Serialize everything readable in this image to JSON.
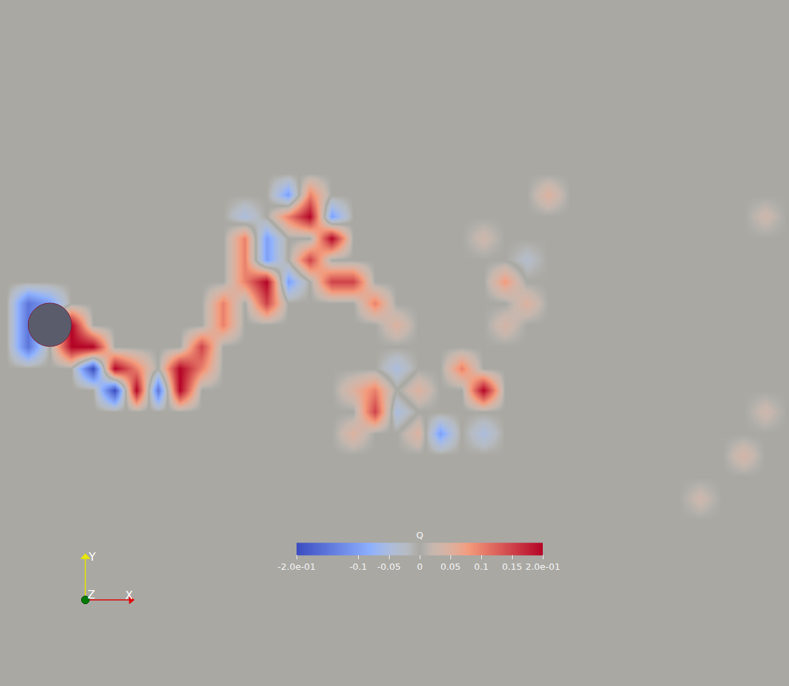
{
  "chart_data": {
    "type": "heatmap",
    "tick_labels": false,
    "xlim": [
      -1.15,
      17.05
    ],
    "ylim": [
      -8.32,
      7.48
    ],
    "x": [
      -1,
      -0.5,
      0,
      0.5,
      1,
      1.5,
      2,
      2.5,
      3,
      3.5,
      4,
      4.5,
      5,
      5.5,
      6,
      6.5,
      7,
      7.5,
      8,
      8.5,
      9,
      9.5,
      10,
      10.5,
      11,
      11.5,
      12,
      12.5,
      13,
      13.5,
      14,
      14.5,
      15,
      15.5,
      16,
      16.5,
      17
    ],
    "y": [
      4,
      3.5,
      3,
      2.5,
      2,
      1.5,
      1,
      0.5,
      0,
      -0.5,
      -1,
      -1.5,
      -2,
      -2.5,
      -3,
      -3.5,
      -4,
      -4.5
    ],
    "z": [
      [
        0,
        0,
        0,
        0,
        0,
        0,
        0,
        0,
        0,
        0,
        0,
        0,
        0,
        0,
        0,
        0,
        0,
        0,
        0,
        0,
        0,
        0,
        0,
        0,
        0,
        0,
        0,
        0,
        0,
        0,
        0,
        0,
        0,
        0,
        0,
        0,
        0
      ],
      [
        0,
        0,
        0,
        0,
        0,
        0,
        0,
        0,
        0,
        0,
        0,
        0,
        0,
        0,
        0,
        0,
        0,
        0,
        0,
        0,
        0,
        0,
        0,
        0,
        0,
        0,
        0,
        0,
        0,
        0,
        0,
        0,
        0,
        0,
        0,
        0,
        0
      ],
      [
        0,
        0,
        0,
        0,
        0,
        0,
        0,
        0,
        0,
        0,
        0,
        0,
        0,
        -0.1,
        0.1,
        0,
        0,
        0,
        0,
        0,
        0,
        0,
        0,
        0,
        0,
        0.05,
        0,
        0,
        0,
        0,
        0,
        0,
        0,
        0,
        0,
        0,
        0
      ],
      [
        0,
        0,
        0,
        0,
        0,
        0,
        0,
        0,
        0,
        0,
        0,
        -0.05,
        0,
        0.1,
        0.2,
        -0.1,
        0,
        0,
        0,
        0,
        0,
        0,
        0,
        0,
        0,
        0,
        0,
        0,
        0,
        0,
        0,
        0,
        0,
        0,
        0,
        0.03,
        0
      ],
      [
        0,
        0,
        0,
        0,
        0,
        0,
        0,
        0,
        0,
        0,
        0,
        0.1,
        -0.1,
        0,
        0,
        0.2,
        0,
        0,
        0,
        0,
        0,
        0,
        0.03,
        0,
        0,
        0,
        0,
        0,
        0,
        0,
        0,
        0,
        0,
        0,
        0,
        0,
        0
      ],
      [
        0,
        0,
        0,
        0,
        0,
        0,
        0,
        0,
        0,
        0,
        0,
        0.1,
        -0.1,
        0,
        0.15,
        0,
        0,
        0,
        0,
        0,
        0,
        0,
        0,
        0,
        -0.03,
        0,
        0,
        0,
        0,
        0,
        0,
        0,
        0,
        0,
        0,
        0,
        0
      ],
      [
        0,
        0,
        0,
        0,
        0,
        0,
        0,
        0,
        0,
        0,
        0,
        0.1,
        0.2,
        -0.1,
        0,
        0.15,
        0.15,
        0,
        0,
        0,
        0,
        0,
        0,
        0.08,
        0,
        0,
        0,
        0,
        0,
        0,
        0,
        0,
        0,
        0,
        0,
        0,
        0
      ],
      [
        0,
        -0.15,
        -0.1,
        0,
        0,
        0,
        0,
        0,
        0,
        0,
        0.1,
        0,
        0.15,
        0,
        0,
        0,
        0,
        0.1,
        0,
        0,
        0,
        0,
        0,
        0,
        0.05,
        0,
        0,
        0,
        0,
        0,
        0,
        0,
        0,
        0,
        0,
        0,
        0
      ],
      [
        0,
        -0.15,
        0,
        0.2,
        0,
        0,
        0,
        0,
        0,
        0,
        0.1,
        0,
        0,
        0,
        0,
        0,
        0,
        0,
        0.05,
        0,
        0,
        0,
        0,
        0.04,
        0,
        0,
        0,
        0,
        0,
        0,
        0,
        0,
        0,
        0,
        0,
        0,
        0
      ],
      [
        0,
        -0.15,
        0,
        0.2,
        0.2,
        0,
        0,
        0,
        0,
        0.15,
        0,
        0,
        0,
        0,
        0,
        0,
        0,
        0,
        0,
        0,
        0,
        0,
        0,
        0,
        0,
        0,
        0,
        0,
        0,
        0,
        0,
        0,
        0,
        0,
        0,
        0,
        0
      ],
      [
        0,
        0,
        0,
        0,
        -0.2,
        0.2,
        0.1,
        0,
        0.2,
        0.1,
        0,
        0,
        0,
        0,
        0,
        0,
        0,
        0,
        -0.05,
        0,
        0,
        0.1,
        0,
        0,
        0,
        0,
        0,
        0,
        0,
        0,
        0,
        0,
        0,
        0,
        0,
        0,
        0
      ],
      [
        0,
        0,
        0,
        0,
        0,
        -0.2,
        0.2,
        -0.15,
        0.2,
        0,
        0,
        0,
        0,
        0,
        0,
        0,
        0.05,
        0.1,
        0,
        0.05,
        0,
        0,
        0.2,
        0,
        0,
        0,
        0,
        0,
        0,
        0,
        0,
        0,
        0,
        0,
        0,
        0,
        0
      ],
      [
        0,
        0,
        0,
        0,
        0,
        0,
        0,
        0,
        0,
        0,
        0,
        0,
        0,
        0,
        0,
        0,
        0,
        0.15,
        -0.05,
        0,
        0,
        0,
        0,
        0,
        0,
        0,
        0,
        0,
        0,
        0,
        0,
        0,
        0,
        0,
        0,
        0.03,
        0
      ],
      [
        0,
        0,
        0,
        0,
        0,
        0,
        0,
        0,
        0,
        0,
        0,
        0,
        0,
        0,
        0,
        0,
        0.05,
        0,
        0,
        0.05,
        -0.1,
        0,
        -0.05,
        0,
        0,
        0,
        0,
        0,
        0,
        0,
        0,
        0,
        0,
        0,
        0,
        0,
        0
      ],
      [
        0,
        0,
        0,
        0,
        0,
        0,
        0,
        0,
        0,
        0,
        0,
        0,
        0,
        0,
        0,
        0,
        0,
        0,
        0,
        0,
        0,
        0,
        0,
        0,
        0,
        0,
        0,
        0,
        0,
        0,
        0,
        0,
        0,
        0,
        0.04,
        0,
        0
      ],
      [
        0,
        0,
        0,
        0,
        0,
        0,
        0,
        0,
        0,
        0,
        0,
        0,
        0,
        0,
        0,
        0,
        0,
        0,
        0,
        0,
        0,
        0,
        0,
        0,
        0,
        0,
        0,
        0,
        0,
        0,
        0,
        0,
        0,
        0,
        0,
        0,
        0
      ],
      [
        0,
        0,
        0,
        0,
        0,
        0,
        0,
        0,
        0,
        0,
        0,
        0,
        0,
        0,
        0,
        0,
        0,
        0,
        0,
        0,
        0,
        0,
        0,
        0,
        0,
        0,
        0,
        0,
        0,
        0,
        0,
        0,
        0.03,
        0,
        0,
        0,
        0
      ],
      [
        0,
        0,
        0,
        0,
        0,
        0,
        0,
        0,
        0,
        0,
        0,
        0,
        0,
        0,
        0,
        0,
        0,
        0,
        0,
        0,
        0,
        0,
        0,
        0,
        0,
        0,
        0,
        0,
        0,
        0,
        0,
        0,
        0,
        0,
        0,
        0,
        0
      ]
    ],
    "colorbar": {
      "title": "Q",
      "range": [
        -0.2,
        0.2
      ],
      "ticks": [
        {
          "value": -0.2,
          "label": "-2.0e-01"
        },
        -0.1,
        -0.05,
        0,
        0.05,
        0.1,
        0.15,
        {
          "value": 0.2,
          "label": "2.0e-01"
        }
      ]
    },
    "axes_labels": {
      "x": "X",
      "y": "Y",
      "z": "Z"
    }
  }
}
